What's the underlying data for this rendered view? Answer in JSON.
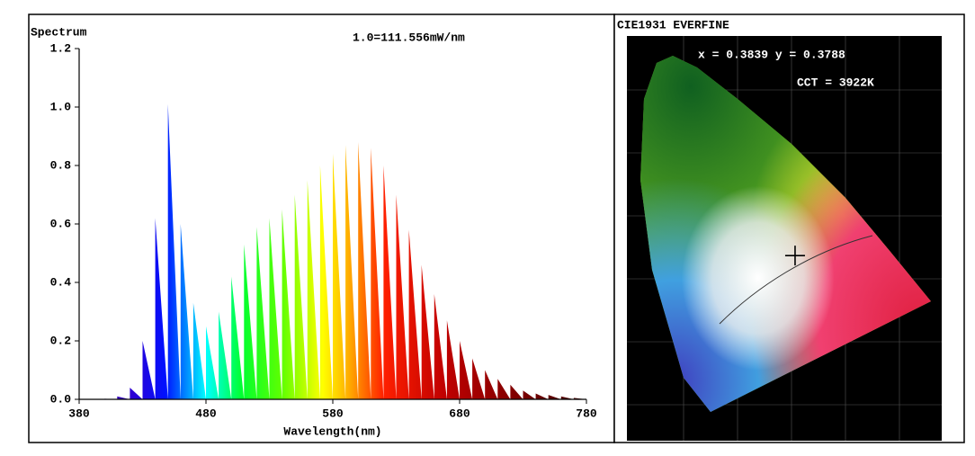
{
  "chart_data": [
    {
      "type": "area",
      "title": "Spectrum",
      "subtitle": "1.0=111.556mW/nm",
      "x_label": "Wavelength(nm)",
      "x": [
        380,
        390,
        400,
        410,
        420,
        430,
        440,
        450,
        460,
        470,
        480,
        490,
        500,
        510,
        520,
        530,
        540,
        550,
        560,
        570,
        580,
        590,
        600,
        610,
        620,
        630,
        640,
        650,
        660,
        670,
        680,
        690,
        700,
        710,
        720,
        730,
        740,
        750,
        760,
        770,
        780
      ],
      "values": [
        0,
        0,
        0.002,
        0.01,
        0.04,
        0.2,
        0.62,
        1.01,
        0.6,
        0.33,
        0.25,
        0.3,
        0.42,
        0.53,
        0.59,
        0.62,
        0.65,
        0.7,
        0.75,
        0.8,
        0.84,
        0.87,
        0.88,
        0.86,
        0.8,
        0.7,
        0.58,
        0.46,
        0.36,
        0.27,
        0.2,
        0.14,
        0.1,
        0.07,
        0.05,
        0.03,
        0.02,
        0.015,
        0.01,
        0.005,
        0.003
      ],
      "xlim": [
        380,
        780
      ],
      "xticks": [
        380,
        480,
        580,
        680,
        780
      ],
      "ylim": [
        0,
        1.2
      ],
      "yticks": [
        {
          "value": 0,
          "label": "0.0"
        },
        0.2,
        0.4,
        0.6,
        0.8,
        {
          "value": 1,
          "label": "1.0"
        },
        1.2
      ]
    },
    {
      "type": "scatter",
      "title": "CIE1931 EVERFINE",
      "annotations": [
        "x = 0.3839 y = 0.3788",
        "CCT = 3922K"
      ],
      "x": [
        0.3839
      ],
      "values": [
        0.3788
      ],
      "xlim": [
        0,
        0.8
      ],
      "ylim": [
        0,
        0.9
      ],
      "color": "#000000"
    }
  ]
}
